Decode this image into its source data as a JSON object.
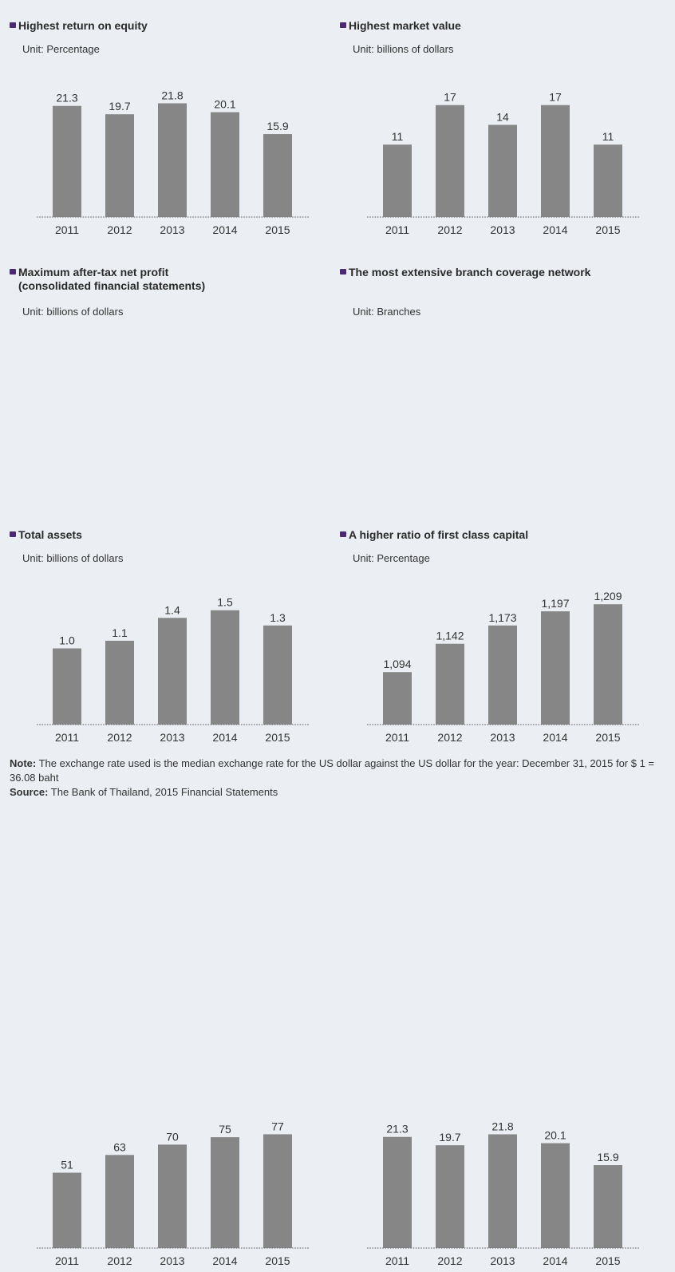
{
  "chart_data": [
    {
      "type": "bar",
      "title": "Highest return on equity",
      "unit": "Unit: Percentage",
      "categories": [
        "2011",
        "2012",
        "2013",
        "2014",
        "2015"
      ],
      "values": [
        21.3,
        19.7,
        21.8,
        20.1,
        15.9
      ],
      "value_labels": [
        "21.3",
        "19.7",
        "21.8",
        "20.1",
        "15.9"
      ],
      "ylim": [
        0,
        26
      ]
    },
    {
      "type": "bar",
      "title": "Highest market value",
      "unit": "Unit: billions of dollars",
      "categories": [
        "2011",
        "2012",
        "2013",
        "2014",
        "2015"
      ],
      "values": [
        11,
        17,
        14,
        17,
        11
      ],
      "value_labels": [
        "11",
        "17",
        "14",
        "17",
        "11"
      ],
      "ylim": [
        0,
        20.6
      ]
    },
    {
      "type": "bar",
      "title": "Maximum after-tax net profit\n(consolidated financial statements)",
      "unit": "Unit: billions of dollars",
      "categories": [
        "2011",
        "2012",
        "2013",
        "2014",
        "2015"
      ],
      "values": [
        1.0,
        1.1,
        1.4,
        1.5,
        1.3
      ],
      "value_labels": [
        "1.0",
        "1.1",
        "1.4",
        "1.5",
        "1.3"
      ],
      "ylim": [
        0,
        1.78
      ]
    },
    {
      "type": "bar",
      "title": "The most extensive branch coverage network",
      "unit": "Unit: Branches",
      "categories": [
        "2011",
        "2012",
        "2013",
        "2014",
        "2015"
      ],
      "values": [
        1094,
        1142,
        1173,
        1197,
        1209
      ],
      "value_labels": [
        "1,094",
        "1,142",
        "1,173",
        "1,197",
        "1,209"
      ],
      "ylim": [
        1005,
        1235
      ]
    },
    {
      "type": "bar",
      "title": "Total assets",
      "unit": "Unit: billions of dollars",
      "categories": [
        "2011",
        "2012",
        "2013",
        "2014",
        "2015"
      ],
      "values": [
        51,
        63,
        70,
        75,
        77
      ],
      "value_labels": [
        "51",
        "63",
        "70",
        "75",
        "77"
      ],
      "ylim": [
        0,
        91.8
      ]
    },
    {
      "type": "bar",
      "title": "A higher ratio of first class capital",
      "unit": "Unit: Percentage",
      "categories": [
        "2011",
        "2012",
        "2013",
        "2014",
        "2015"
      ],
      "values": [
        21.3,
        19.7,
        21.8,
        20.1,
        15.9
      ],
      "value_labels": [
        "21.3",
        "19.7",
        "21.8",
        "20.1",
        "15.9"
      ],
      "ylim": [
        0,
        26
      ]
    }
  ],
  "colors": {
    "bar": "#868686",
    "bullet": "#4b2a73",
    "background": "#ebeef2"
  },
  "footer": {
    "note_label": "Note:",
    "note_text": " The exchange rate used is the median exchange rate for the US dollar against the US dollar for the year: December 31, 2015 for $ 1 = 36.08 baht",
    "source_label": "Source:",
    "source_text": " The Bank of Thailand, 2015 Financial Statements"
  }
}
